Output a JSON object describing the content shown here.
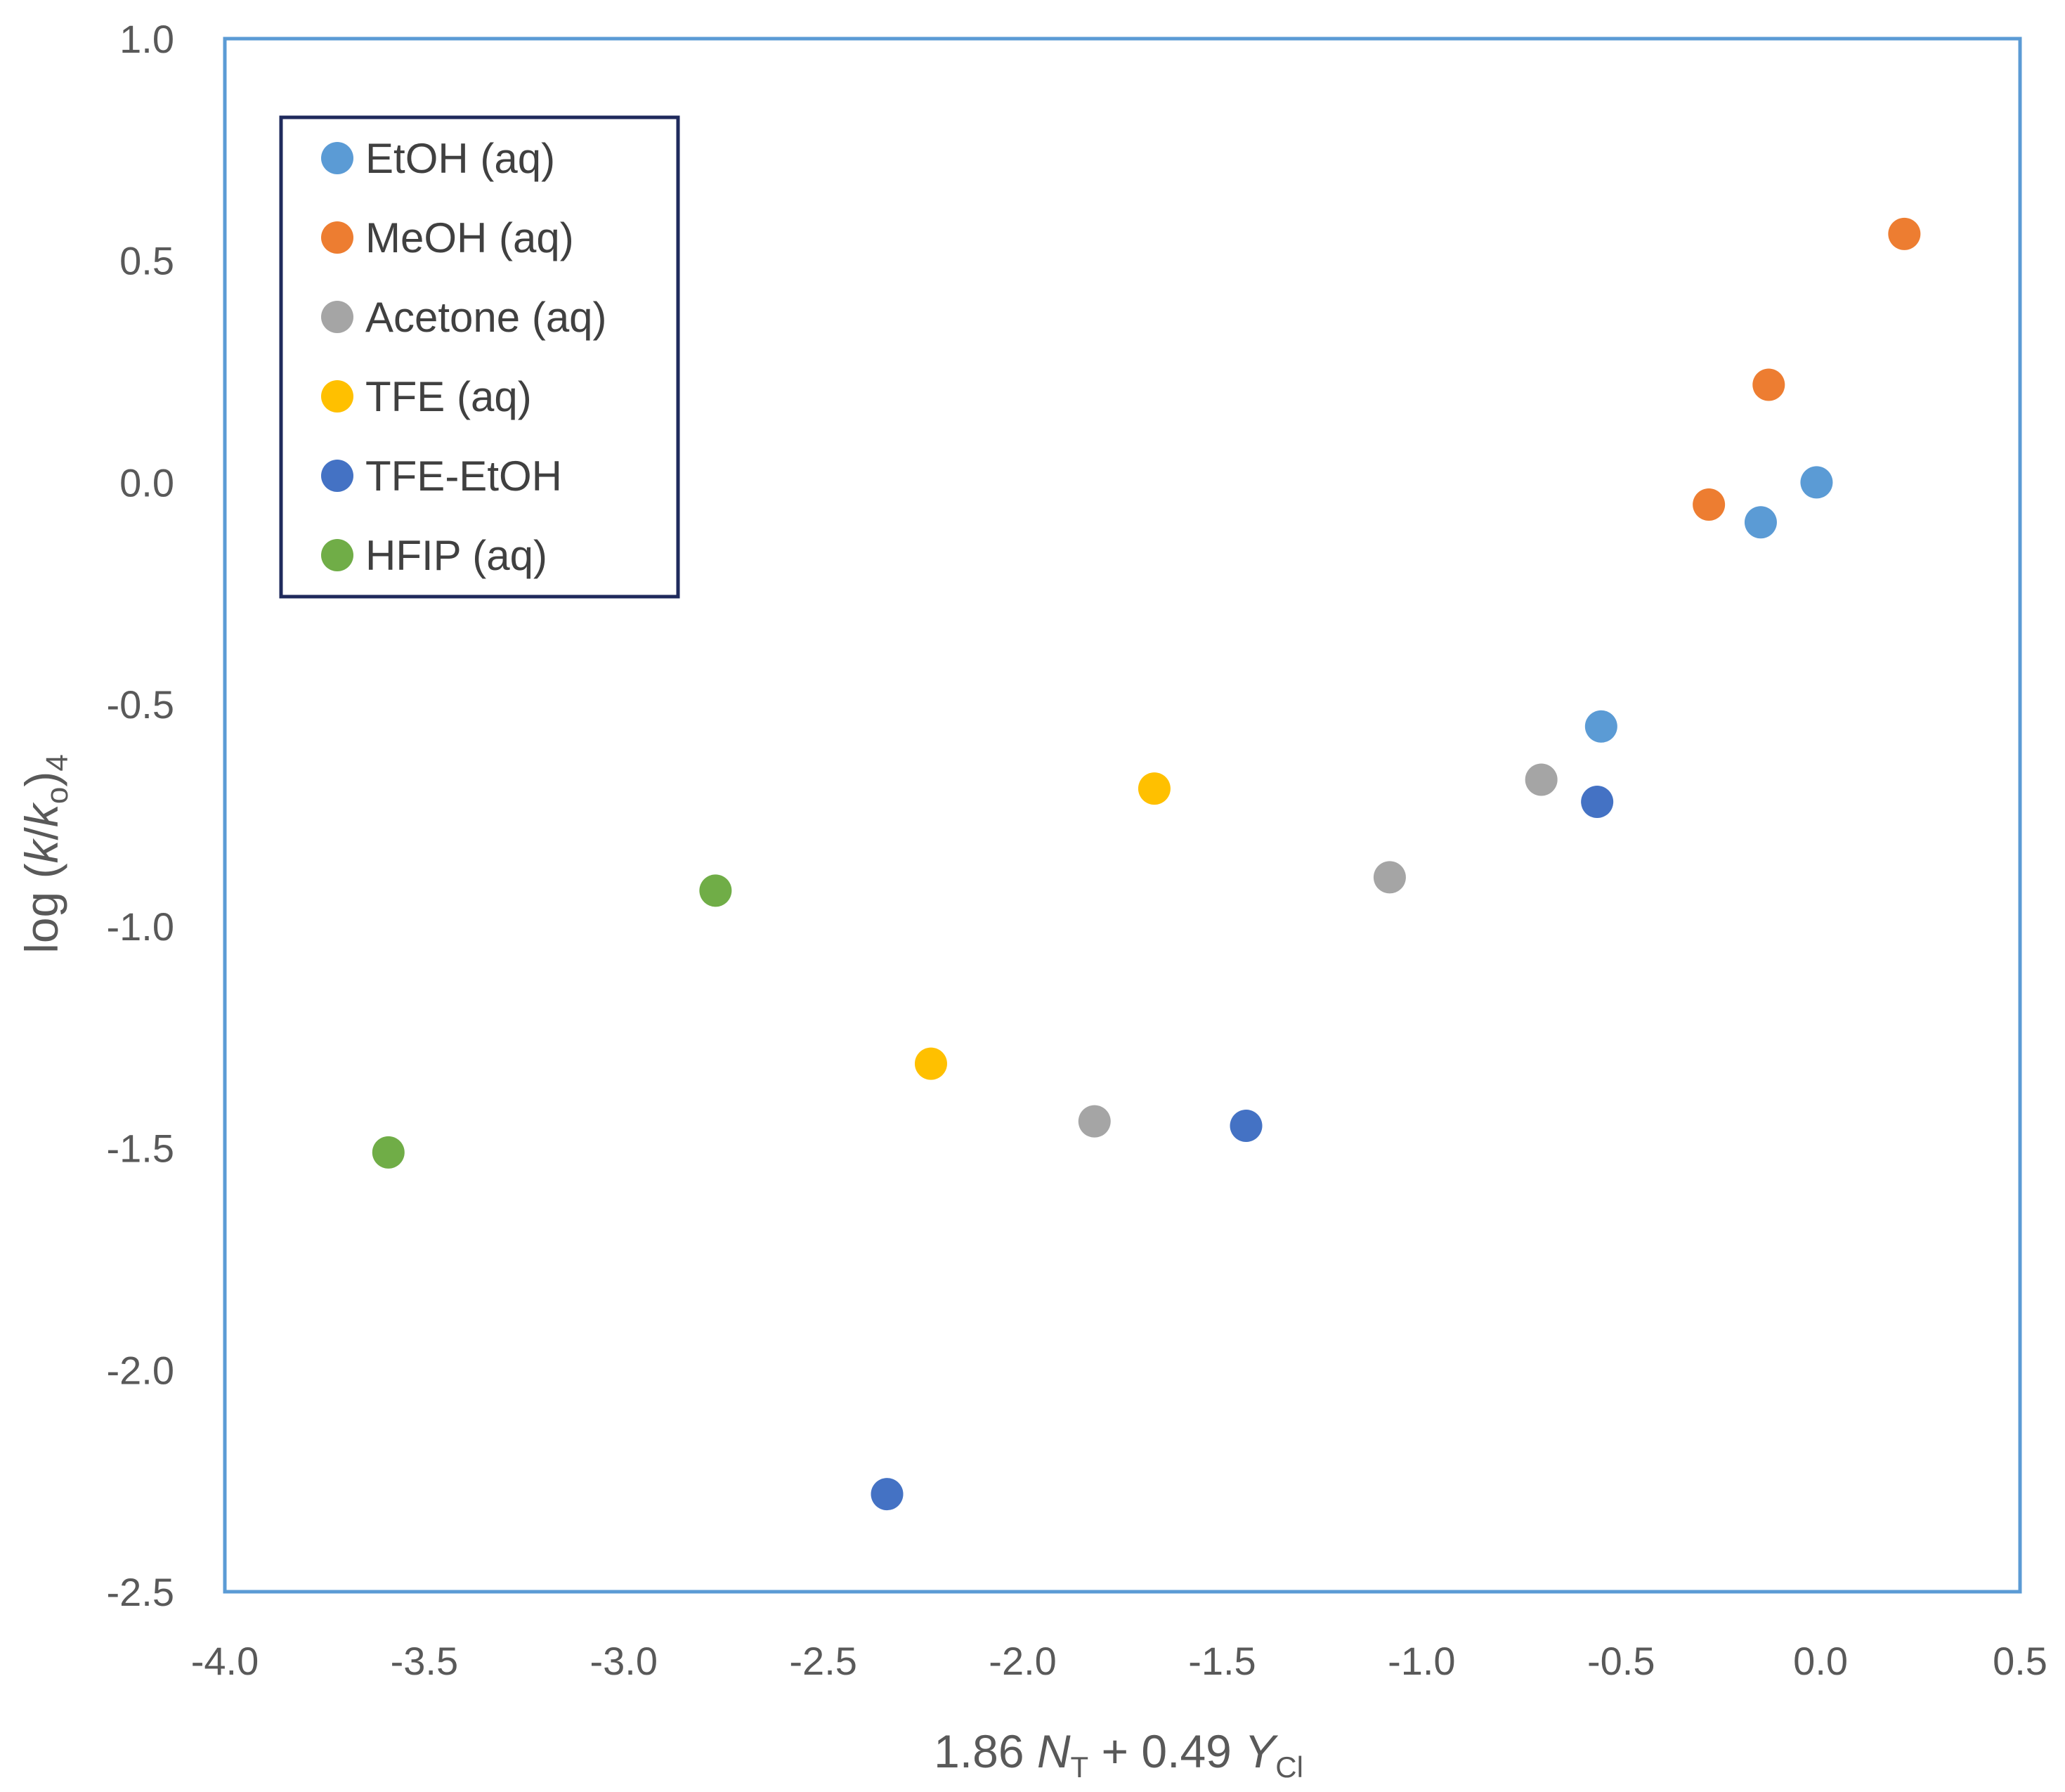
{
  "chart_data": {
    "type": "scatter",
    "title": "",
    "x_axis": {
      "min": -4.0,
      "max": 0.5,
      "ticks": [
        -4.0,
        -3.5,
        -3.0,
        -2.5,
        -2.0,
        -1.5,
        -1.0,
        -0.5,
        0.0,
        0.5
      ],
      "tick_labels": [
        "-4.0",
        "-3.5",
        "-3.0",
        "-2.5",
        "-2.0",
        "-1.5",
        "-1.0",
        "-0.5",
        "0.0",
        "0.5"
      ],
      "label": {
        "part1": "1.86 ",
        "N": "N",
        "sub_T": "T",
        "part2": " + 0.49 ",
        "Y": "Y",
        "sub_Cl": "Cl"
      }
    },
    "y_axis": {
      "min": -2.5,
      "max": 1.0,
      "ticks": [
        1.0,
        0.5,
        0.0,
        -0.5,
        -1.0,
        -1.5,
        -2.0,
        -2.5
      ],
      "tick_labels": [
        "1.0",
        "0.5",
        "0.0",
        "-0.5",
        "-1.0",
        "-1.5",
        "-2.0",
        "-2.5"
      ],
      "label": {
        "prefix": "log (",
        "k": "k",
        "slash": "/",
        "k2": "k",
        "sub_o": "o",
        "close": ")",
        "sub_4": "4"
      }
    },
    "legend_position": "top-left",
    "series": [
      {
        "name": "EtOH (aq)",
        "color": "#5B9BD5",
        "points": [
          [
            -0.01,
            0.0
          ],
          [
            -0.15,
            -0.09
          ],
          [
            -0.55,
            -0.55
          ]
        ]
      },
      {
        "name": "MeOH (aq)",
        "color": "#ED7D31",
        "points": [
          [
            0.21,
            0.56
          ],
          [
            -0.13,
            0.22
          ],
          [
            -0.28,
            -0.05
          ]
        ]
      },
      {
        "name": "Acetone (aq)",
        "color": "#A5A5A5",
        "points": [
          [
            -0.7,
            -0.67
          ],
          [
            -1.08,
            -0.89
          ],
          [
            -1.82,
            -1.44
          ]
        ]
      },
      {
        "name": "TFE (aq)",
        "color": "#FFC000",
        "points": [
          [
            -1.67,
            -0.69
          ],
          [
            -2.23,
            -1.31
          ]
        ]
      },
      {
        "name": "TFE-EtOH",
        "color": "#4472C4",
        "points": [
          [
            -0.56,
            -0.72
          ],
          [
            -1.44,
            -1.45
          ],
          [
            -2.34,
            -2.28
          ]
        ]
      },
      {
        "name": "HFIP (aq)",
        "color": "#70AD47",
        "points": [
          [
            -2.77,
            -0.92
          ],
          [
            -3.59,
            -1.51
          ]
        ]
      }
    ]
  }
}
